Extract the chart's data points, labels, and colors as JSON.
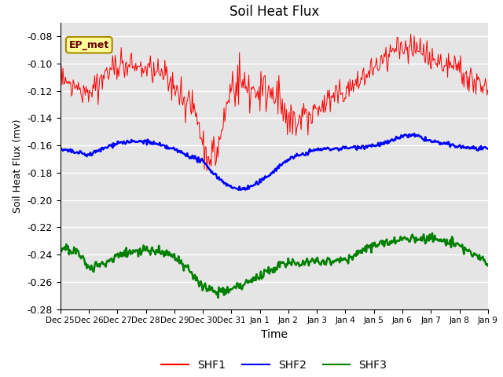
{
  "title": "Soil Heat Flux",
  "ylabel": "Soil Heat Flux (mv)",
  "xlabel": "Time",
  "annotation": "EP_met",
  "ylim": [
    -0.28,
    -0.07
  ],
  "yticks": [
    -0.28,
    -0.26,
    -0.24,
    -0.22,
    -0.2,
    -0.18,
    -0.16,
    -0.14,
    -0.12,
    -0.1,
    -0.08
  ],
  "xtick_labels": [
    "Dec 25",
    "Dec 26",
    "Dec 27",
    "Dec 28",
    "Dec 29",
    "Dec 30",
    "Dec 31",
    "Jan 1",
    "Jan 2",
    "Jan 3",
    "Jan 4",
    "Jan 5",
    "Jan 6",
    "Jan 7",
    "Jan 8",
    "Jan 9"
  ],
  "colors": {
    "SHF1": "red",
    "SHF2": "blue",
    "SHF3": "green",
    "background": "#e5e5e5",
    "annotation_bg": "#ffff99",
    "annotation_border": "#aa8800"
  },
  "legend_labels": [
    "SHF1",
    "SHF2",
    "SHF3"
  ],
  "n_points": 500
}
